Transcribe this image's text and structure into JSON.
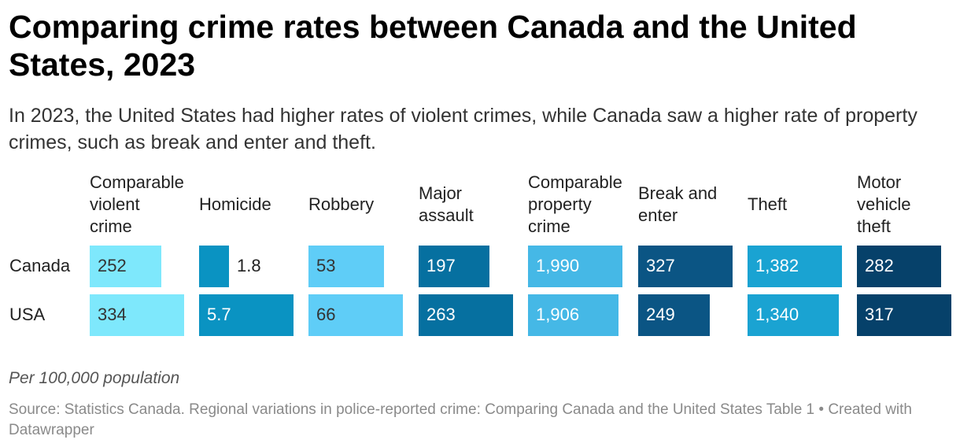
{
  "header": {
    "title": "Comparing crime rates between Canada and the United States, 2023",
    "subtitle": "In 2023, the United States had higher rates of violent crimes, while Canada saw a higher rate of property crimes, such as break and enter and theft."
  },
  "footer": {
    "note": "Per 100,000 population",
    "source": "Source: Statistics Canada. Regional variations in police-reported crime: Comparing Canada and the United States Table 1 • Created with Datawrapper"
  },
  "chart_data": {
    "type": "bar",
    "title": "Comparing crime rates between Canada and the United States, 2023",
    "unit": "Per 100,000 population",
    "rows": [
      "Canada",
      "USA"
    ],
    "columns": [
      {
        "name": "Comparable\nviolent\ncrime",
        "color": "#7ee8fc",
        "text_color": "#333333",
        "values": [
          252,
          334
        ],
        "labels": [
          "252",
          "334"
        ]
      },
      {
        "name": "Homicide",
        "color": "#0a93c2",
        "text_color": "#ffffff",
        "values": [
          1.8,
          5.7
        ],
        "labels": [
          "1.8",
          "5.7"
        ]
      },
      {
        "name": "Robbery",
        "color": "#5fcdf7",
        "text_color": "#333333",
        "values": [
          53,
          66
        ],
        "labels": [
          "53",
          "66"
        ]
      },
      {
        "name": "Major\nassault",
        "color": "#0670a0",
        "text_color": "#ffffff",
        "values": [
          197,
          263
        ],
        "labels": [
          "197",
          "263"
        ]
      },
      {
        "name": "Comparable\nproperty\ncrime",
        "color": "#45b8e6",
        "text_color": "#ffffff",
        "values": [
          1990,
          1906
        ],
        "labels": [
          "1,990",
          "1,906"
        ]
      },
      {
        "name": "Break and\nenter",
        "color": "#0b5584",
        "text_color": "#ffffff",
        "values": [
          327,
          249
        ],
        "labels": [
          "327",
          "249"
        ]
      },
      {
        "name": "Theft",
        "color": "#1aa3d2",
        "text_color": "#ffffff",
        "values": [
          1382,
          1340
        ],
        "labels": [
          "1,382",
          "1,340"
        ]
      },
      {
        "name": "Motor\nvehicle\ntheft",
        "color": "#06416a",
        "text_color": "#ffffff",
        "values": [
          282,
          317
        ],
        "labels": [
          "282",
          "317"
        ]
      }
    ]
  }
}
